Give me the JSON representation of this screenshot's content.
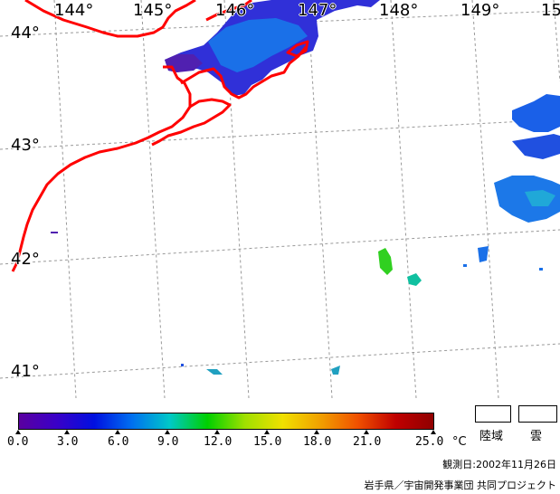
{
  "map": {
    "longitude_labels": [
      "144°",
      "145°",
      "146°",
      "147°",
      "148°",
      "149°",
      "15"
    ],
    "latitude_labels": [
      "44°",
      "43°",
      "42°",
      "41°"
    ]
  },
  "colorbar": {
    "unit": "°C",
    "tick_labels": [
      "0.0",
      "3.0",
      "6.0",
      "9.0",
      "12.0",
      "15.0",
      "18.0",
      "21.0",
      "25.0"
    ],
    "min": 0.0,
    "max": 25.0,
    "colors": [
      "#5a00a0",
      "#3a00c8",
      "#0010e0",
      "#0070f0",
      "#00c8c8",
      "#00d000",
      "#a0e000",
      "#f0e000",
      "#f0a000",
      "#f05000",
      "#c00000",
      "#900000"
    ]
  },
  "legend": {
    "land_label": "陸域",
    "cloud_label": "雲"
  },
  "footer": {
    "observation_date": "観測日:2002年11月26日",
    "credit": "岩手県／宇宙開発事業団 共同プロジェクト"
  },
  "colors": {
    "coastline": "#ff0000",
    "grid": "#999999"
  }
}
